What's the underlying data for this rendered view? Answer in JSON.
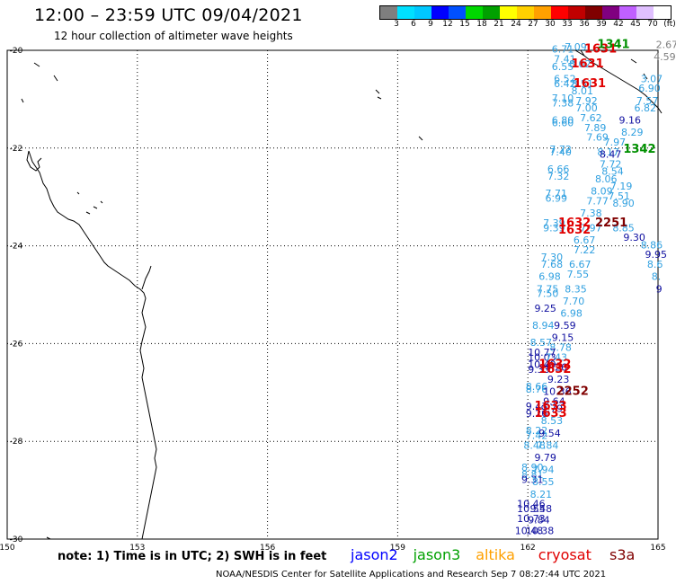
{
  "title": "12:00 – 23:59 UTC 09/04/2021",
  "subtitle": "12 hour collection of altimeter wave heights",
  "colorbar": {
    "colors": [
      "#7f7f7f",
      "#00e0ff",
      "#00c8ff",
      "#0000ff",
      "#0050ff",
      "#00d800",
      "#00a000",
      "#ffff00",
      "#ffd000",
      "#ffa000",
      "#ff0000",
      "#c00000",
      "#800000",
      "#800080",
      "#c060ff",
      "#e0c0ff",
      "#ffffff"
    ],
    "labels": [
      "3",
      "6",
      "9",
      "12",
      "15",
      "18",
      "21",
      "24",
      "27",
      "30",
      "33",
      "36",
      "39",
      "42",
      "45",
      "70",
      "(ft)"
    ]
  },
  "map": {
    "lon_range": [
      150,
      165
    ],
    "lat_range": [
      -30,
      -20
    ],
    "lon_ticks": [
      "150",
      "153",
      "156",
      "159",
      "162",
      "165"
    ],
    "lat_ticks": [
      "-20",
      "-22",
      "-24",
      "-26",
      "-28",
      "-30"
    ]
  },
  "wave_heights": [
    {
      "lon": 162.55,
      "lat": -20.05,
      "v": "6.71",
      "c": "#30a0e0"
    },
    {
      "lon": 162.85,
      "lat": -20.0,
      "v": "7.09",
      "c": "#30a0e0"
    },
    {
      "lon": 162.6,
      "lat": -20.25,
      "v": "7.41",
      "c": "#30a0e0"
    },
    {
      "lon": 162.55,
      "lat": -20.4,
      "v": "6.55",
      "c": "#30a0e0"
    },
    {
      "lon": 162.95,
      "lat": -20.35,
      "v": "8.02",
      "c": "#30a0e0"
    },
    {
      "lon": 162.6,
      "lat": -20.65,
      "v": "6.52",
      "c": "#30a0e0"
    },
    {
      "lon": 162.6,
      "lat": -20.75,
      "v": "6.42",
      "c": "#30a0e0"
    },
    {
      "lon": 163.0,
      "lat": -20.75,
      "v": "8.51",
      "c": "#30a0e0"
    },
    {
      "lon": 163.0,
      "lat": -20.9,
      "v": "8.01",
      "c": "#30a0e0"
    },
    {
      "lon": 164.95,
      "lat": -19.95,
      "v": "2.67",
      "c": "#7f7f7f"
    },
    {
      "lon": 164.9,
      "lat": -20.2,
      "v": "4.59",
      "c": "#7f7f7f"
    },
    {
      "lon": 164.6,
      "lat": -20.65,
      "v": "3.07",
      "c": "#30a0e0"
    },
    {
      "lon": 164.55,
      "lat": -20.85,
      "v": "6.90",
      "c": "#30a0e0"
    },
    {
      "lon": 162.55,
      "lat": -21.05,
      "v": "7.10",
      "c": "#30a0e0"
    },
    {
      "lon": 162.55,
      "lat": -21.15,
      "v": "7.38",
      "c": "#30a0e0"
    },
    {
      "lon": 163.1,
      "lat": -21.1,
      "v": "7.92",
      "c": "#30a0e0"
    },
    {
      "lon": 163.1,
      "lat": -21.25,
      "v": "7.00",
      "c": "#30a0e0"
    },
    {
      "lon": 164.5,
      "lat": -21.1,
      "v": "7.57",
      "c": "#30a0e0"
    },
    {
      "lon": 164.45,
      "lat": -21.25,
      "v": "6.82",
      "c": "#30a0e0"
    },
    {
      "lon": 162.55,
      "lat": -21.5,
      "v": "6.80",
      "c": "#30a0e0"
    },
    {
      "lon": 162.55,
      "lat": -21.55,
      "v": "6.60",
      "c": "#30a0e0"
    },
    {
      "lon": 163.2,
      "lat": -21.45,
      "v": "7.62",
      "c": "#30a0e0"
    },
    {
      "lon": 164.1,
      "lat": -21.5,
      "v": "9.16",
      "c": "#1010a0"
    },
    {
      "lon": 163.3,
      "lat": -21.65,
      "v": "7.89",
      "c": "#30a0e0"
    },
    {
      "lon": 164.15,
      "lat": -21.75,
      "v": "8.29",
      "c": "#30a0e0"
    },
    {
      "lon": 163.35,
      "lat": -21.85,
      "v": "7.69",
      "c": "#30a0e0"
    },
    {
      "lon": 163.75,
      "lat": -21.95,
      "v": "7.97",
      "c": "#30a0e0"
    },
    {
      "lon": 162.5,
      "lat": -22.1,
      "v": "7.72",
      "c": "#30a0e0"
    },
    {
      "lon": 162.5,
      "lat": -22.15,
      "v": "7.40",
      "c": "#30a0e0"
    },
    {
      "lon": 163.6,
      "lat": -22.15,
      "v": "8.17",
      "c": "#30a0e0"
    },
    {
      "lon": 163.65,
      "lat": -22.2,
      "v": "8.47",
      "c": "#1010a0"
    },
    {
      "lon": 163.65,
      "lat": -22.4,
      "v": "7.72",
      "c": "#30a0e0"
    },
    {
      "lon": 162.45,
      "lat": -22.5,
      "v": "6.66",
      "c": "#30a0e0"
    },
    {
      "lon": 162.45,
      "lat": -22.65,
      "v": "7.32",
      "c": "#30a0e0"
    },
    {
      "lon": 163.7,
      "lat": -22.55,
      "v": "8.54",
      "c": "#30a0e0"
    },
    {
      "lon": 163.55,
      "lat": -22.7,
      "v": "8.06",
      "c": "#30a0e0"
    },
    {
      "lon": 163.9,
      "lat": -22.85,
      "v": "7.19",
      "c": "#30a0e0"
    },
    {
      "lon": 163.45,
      "lat": -22.95,
      "v": "8.09",
      "c": "#30a0e0"
    },
    {
      "lon": 163.85,
      "lat": -23.05,
      "v": "7.51",
      "c": "#30a0e0"
    },
    {
      "lon": 162.4,
      "lat": -23.0,
      "v": "7.71",
      "c": "#30a0e0"
    },
    {
      "lon": 162.4,
      "lat": -23.1,
      "v": "6.99",
      "c": "#30a0e0"
    },
    {
      "lon": 163.35,
      "lat": -23.15,
      "v": "7.77",
      "c": "#30a0e0"
    },
    {
      "lon": 163.95,
      "lat": -23.2,
      "v": "8.90",
      "c": "#30a0e0"
    },
    {
      "lon": 163.2,
      "lat": -23.4,
      "v": "7.38",
      "c": "#30a0e0"
    },
    {
      "lon": 162.35,
      "lat": -23.6,
      "v": "7.39",
      "c": "#30a0e0"
    },
    {
      "lon": 162.35,
      "lat": -23.7,
      "v": "9.39",
      "c": "#30a0e0"
    },
    {
      "lon": 163.2,
      "lat": -23.7,
      "v": "7.97",
      "c": "#30a0e0"
    },
    {
      "lon": 163.95,
      "lat": -23.7,
      "v": "8.85",
      "c": "#30a0e0"
    },
    {
      "lon": 164.2,
      "lat": -23.9,
      "v": "9.30",
      "c": "#1010a0"
    },
    {
      "lon": 163.05,
      "lat": -23.95,
      "v": "6.67",
      "c": "#30a0e0"
    },
    {
      "lon": 164.6,
      "lat": -24.05,
      "v": "8.86",
      "c": "#30a0e0"
    },
    {
      "lon": 163.05,
      "lat": -24.15,
      "v": "7.22",
      "c": "#30a0e0"
    },
    {
      "lon": 164.7,
      "lat": -24.25,
      "v": "9.95",
      "c": "#1010a0"
    },
    {
      "lon": 162.3,
      "lat": -24.3,
      "v": "7.30",
      "c": "#30a0e0"
    },
    {
      "lon": 162.3,
      "lat": -24.45,
      "v": "7.68",
      "c": "#30a0e0"
    },
    {
      "lon": 162.95,
      "lat": -24.45,
      "v": "6.67",
      "c": "#30a0e0"
    },
    {
      "lon": 164.75,
      "lat": -24.45,
      "v": "8.6",
      "c": "#30a0e0"
    },
    {
      "lon": 162.25,
      "lat": -24.7,
      "v": "6.98",
      "c": "#30a0e0"
    },
    {
      "lon": 162.9,
      "lat": -24.65,
      "v": "7.55",
      "c": "#30a0e0"
    },
    {
      "lon": 164.85,
      "lat": -24.7,
      "v": "8.",
      "c": "#30a0e0"
    },
    {
      "lon": 162.2,
      "lat": -24.95,
      "v": "7.75",
      "c": "#30a0e0"
    },
    {
      "lon": 162.2,
      "lat": -25.05,
      "v": "7.50",
      "c": "#30a0e0"
    },
    {
      "lon": 162.85,
      "lat": -24.95,
      "v": "8.35",
      "c": "#30a0e0"
    },
    {
      "lon": 164.95,
      "lat": -24.95,
      "v": "9",
      "c": "#1010a0"
    },
    {
      "lon": 162.8,
      "lat": -25.2,
      "v": "7.70",
      "c": "#30a0e0"
    },
    {
      "lon": 162.15,
      "lat": -25.35,
      "v": "9.25",
      "c": "#1010a0"
    },
    {
      "lon": 162.75,
      "lat": -25.45,
      "v": "6.98",
      "c": "#30a0e0"
    },
    {
      "lon": 162.1,
      "lat": -25.7,
      "v": "8.94",
      "c": "#30a0e0"
    },
    {
      "lon": 162.6,
      "lat": -25.7,
      "v": "9.59",
      "c": "#1010a0"
    },
    {
      "lon": 162.55,
      "lat": -25.95,
      "v": "9.15",
      "c": "#1010a0"
    },
    {
      "lon": 162.05,
      "lat": -26.05,
      "v": "8.57",
      "c": "#30a0e0"
    },
    {
      "lon": 162.5,
      "lat": -26.15,
      "v": "8.78",
      "c": "#30a0e0"
    },
    {
      "lon": 162.0,
      "lat": -26.25,
      "v": "10.77",
      "c": "#1010a0"
    },
    {
      "lon": 162.0,
      "lat": -26.35,
      "v": "10.03",
      "c": "#1010a0"
    },
    {
      "lon": 162.4,
      "lat": -26.35,
      "v": "7.43",
      "c": "#30a0e0"
    },
    {
      "lon": 162.0,
      "lat": -26.5,
      "v": "10.49",
      "c": "#1010a0"
    },
    {
      "lon": 162.0,
      "lat": -26.6,
      "v": "9.33",
      "c": "#1010a0"
    },
    {
      "lon": 162.4,
      "lat": -26.55,
      "v": "9.26",
      "c": "#1010a0"
    },
    {
      "lon": 162.45,
      "lat": -26.8,
      "v": "9.23",
      "c": "#1010a0"
    },
    {
      "lon": 161.95,
      "lat": -26.95,
      "v": "8.66",
      "c": "#30a0e0"
    },
    {
      "lon": 161.95,
      "lat": -27.0,
      "v": "8.76",
      "c": "#30a0e0"
    },
    {
      "lon": 162.35,
      "lat": -27.05,
      "v": "10.36",
      "c": "#1010a0"
    },
    {
      "lon": 162.35,
      "lat": -27.25,
      "v": "9.64",
      "c": "#1010a0"
    },
    {
      "lon": 161.95,
      "lat": -27.35,
      "v": "9.43",
      "c": "#1010a0"
    },
    {
      "lon": 162.3,
      "lat": -27.4,
      "v": "9.79",
      "c": "#1010a0"
    },
    {
      "lon": 161.95,
      "lat": -27.5,
      "v": "9.26",
      "c": "#1010a0"
    },
    {
      "lon": 162.3,
      "lat": -27.65,
      "v": "8.53",
      "c": "#30a0e0"
    },
    {
      "lon": 161.95,
      "lat": -27.85,
      "v": "8.22",
      "c": "#30a0e0"
    },
    {
      "lon": 161.95,
      "lat": -27.95,
      "v": "7.42",
      "c": "#30a0e0"
    },
    {
      "lon": 162.25,
      "lat": -27.9,
      "v": "9.54",
      "c": "#1010a0"
    },
    {
      "lon": 161.9,
      "lat": -28.15,
      "v": "8.48",
      "c": "#30a0e0"
    },
    {
      "lon": 162.2,
      "lat": -28.15,
      "v": "7.84",
      "c": "#30a0e0"
    },
    {
      "lon": 162.15,
      "lat": -28.4,
      "v": "9.79",
      "c": "#1010a0"
    },
    {
      "lon": 161.85,
      "lat": -28.6,
      "v": "8.90",
      "c": "#30a0e0"
    },
    {
      "lon": 162.1,
      "lat": -28.65,
      "v": "7.94",
      "c": "#30a0e0"
    },
    {
      "lon": 161.85,
      "lat": -28.75,
      "v": "8.81",
      "c": "#30a0e0"
    },
    {
      "lon": 161.85,
      "lat": -28.85,
      "v": "9.31",
      "c": "#1010a0"
    },
    {
      "lon": 162.1,
      "lat": -28.9,
      "v": "8.55",
      "c": "#30a0e0"
    },
    {
      "lon": 162.05,
      "lat": -29.15,
      "v": "8.21",
      "c": "#30a0e0"
    },
    {
      "lon": 161.75,
      "lat": -29.35,
      "v": "10.46",
      "c": "#1010a0"
    },
    {
      "lon": 161.75,
      "lat": -29.45,
      "v": "10.55",
      "c": "#1010a0"
    },
    {
      "lon": 162.05,
      "lat": -29.45,
      "v": "9.48",
      "c": "#1010a0"
    },
    {
      "lon": 161.75,
      "lat": -29.65,
      "v": "10.73",
      "c": "#1010a0"
    },
    {
      "lon": 162.0,
      "lat": -29.68,
      "v": "9.84",
      "c": "#1010a0"
    },
    {
      "lon": 161.7,
      "lat": -29.9,
      "v": "10.48",
      "c": "#1010a0"
    },
    {
      "lon": 161.95,
      "lat": -29.9,
      "v": "10.38",
      "c": "#1010a0"
    }
  ],
  "pass_times": [
    {
      "lon": 163.3,
      "lat": -20.05,
      "v": "1631",
      "c": "#e00000"
    },
    {
      "lon": 163.6,
      "lat": -19.95,
      "v": "1341",
      "c": "#009000"
    },
    {
      "lon": 163.0,
      "lat": -20.35,
      "v": "1631",
      "c": "#e00000"
    },
    {
      "lon": 163.05,
      "lat": -20.75,
      "v": "1631",
      "c": "#e00000"
    },
    {
      "lon": 164.2,
      "lat": -22.1,
      "v": "1342",
      "c": "#009000"
    },
    {
      "lon": 163.55,
      "lat": -23.6,
      "v": "2251",
      "c": "#800000"
    },
    {
      "lon": 162.7,
      "lat": -23.6,
      "v": "1632",
      "c": "#e00000"
    },
    {
      "lon": 162.7,
      "lat": -23.75,
      "v": "1632",
      "c": "#e00000"
    },
    {
      "lon": 162.25,
      "lat": -26.5,
      "v": "1632",
      "c": "#e00000"
    },
    {
      "lon": 162.25,
      "lat": -26.6,
      "v": "1632",
      "c": "#e00000"
    },
    {
      "lon": 162.65,
      "lat": -27.05,
      "v": "2252",
      "c": "#800000"
    },
    {
      "lon": 162.15,
      "lat": -27.35,
      "v": "1633",
      "c": "#e00000"
    },
    {
      "lon": 162.15,
      "lat": -27.5,
      "v": "1633",
      "c": "#e00000"
    }
  ],
  "legend": {
    "note": "note:  1) Time is in UTC;  2) SWH is in feet",
    "satellites": [
      {
        "name": "jason2",
        "color": "#0000ff"
      },
      {
        "name": "jason3",
        "color": "#00a000"
      },
      {
        "name": "altika",
        "color": "#ffa000"
      },
      {
        "name": "cryosat",
        "color": "#e00000"
      },
      {
        "name": "s3a",
        "color": "#800000"
      }
    ]
  },
  "footer": "NOAA/NESDIS Center for Satellite Applications and Research    Sep  7 08:27:44 UTC 2021"
}
